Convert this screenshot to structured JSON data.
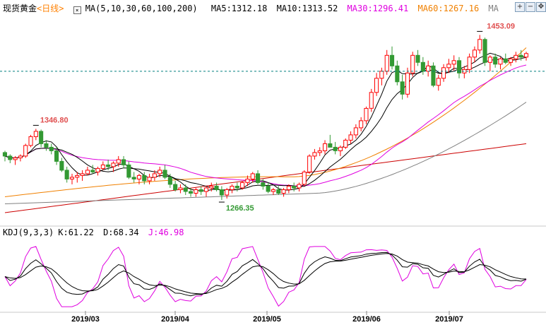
{
  "header": {
    "instrument": "现货黄金",
    "period": "<日线>",
    "ma_config": "MA(5,10,30,60,100,200)",
    "ma5": "MA5:1312.18",
    "ma10": "MA10:1313.52",
    "ma30": "MA30:1296.41",
    "ma60": "MA60:1267.16",
    "ma_more": "MA"
  },
  "controls": {
    "zoom_in": "+",
    "zoom_out": "−",
    "move": "✥"
  },
  "kdj": {
    "config": "KDJ(9,3,3)",
    "k": "K:61.22",
    "d": "D:68.34",
    "j": "J:46.98"
  },
  "colors": {
    "up": "#ff0000",
    "down": "#339933",
    "ma5": "#000000",
    "ma10": "#000000",
    "ma30": "#e000e0",
    "ma60": "#f08000",
    "ma100": "#808080",
    "ma200": "#cc0000",
    "kdj_k": "#000000",
    "kdj_d": "#000000",
    "kdj_j": "#e000e0",
    "price_line": "#008080"
  },
  "chart_data": {
    "type": "candlestick",
    "price_annotations": [
      {
        "label": "1346.80",
        "color": "#e05050"
      },
      {
        "label": "1266.35",
        "color": "#339933"
      },
      {
        "label": "1453.09",
        "color": "#e05050"
      }
    ],
    "x_ticks": [
      "2019/03",
      "2019/04",
      "2019/05",
      "2019/06",
      "2019/07"
    ],
    "last_price": 1412,
    "ylim": [
      1240,
      1475
    ],
    "candles": [
      [
        1320,
        1322,
        1310,
        1316
      ],
      [
        1316,
        1318,
        1308,
        1312
      ],
      [
        1312,
        1316,
        1306,
        1314
      ],
      [
        1314,
        1318,
        1310,
        1316
      ],
      [
        1316,
        1330,
        1314,
        1328
      ],
      [
        1328,
        1340,
        1326,
        1338
      ],
      [
        1338,
        1346.8,
        1334,
        1344
      ],
      [
        1344,
        1346,
        1326,
        1330
      ],
      [
        1330,
        1334,
        1322,
        1326
      ],
      [
        1326,
        1330,
        1318,
        1322
      ],
      [
        1322,
        1326,
        1306,
        1310
      ],
      [
        1310,
        1314,
        1298,
        1300
      ],
      [
        1300,
        1304,
        1286,
        1290
      ],
      [
        1290,
        1296,
        1284,
        1292
      ],
      [
        1292,
        1298,
        1286,
        1294
      ],
      [
        1294,
        1300,
        1288,
        1296
      ],
      [
        1296,
        1304,
        1294,
        1300
      ],
      [
        1300,
        1306,
        1296,
        1298
      ],
      [
        1298,
        1304,
        1294,
        1302
      ],
      [
        1302,
        1310,
        1300,
        1306
      ],
      [
        1306,
        1312,
        1300,
        1304
      ],
      [
        1304,
        1310,
        1298,
        1308
      ],
      [
        1308,
        1316,
        1304,
        1312
      ],
      [
        1312,
        1316,
        1302,
        1306
      ],
      [
        1306,
        1310,
        1290,
        1292
      ],
      [
        1292,
        1298,
        1286,
        1290
      ],
      [
        1290,
        1296,
        1284,
        1294
      ],
      [
        1294,
        1298,
        1284,
        1288
      ],
      [
        1288,
        1296,
        1284,
        1292
      ],
      [
        1292,
        1300,
        1288,
        1296
      ],
      [
        1296,
        1304,
        1292,
        1300
      ],
      [
        1300,
        1306,
        1290,
        1292
      ],
      [
        1292,
        1296,
        1280,
        1284
      ],
      [
        1284,
        1288,
        1276,
        1278
      ],
      [
        1278,
        1284,
        1274,
        1280
      ],
      [
        1280,
        1284,
        1272,
        1276
      ],
      [
        1276,
        1280,
        1270,
        1274
      ],
      [
        1274,
        1280,
        1270,
        1278
      ],
      [
        1278,
        1282,
        1272,
        1276
      ],
      [
        1276,
        1282,
        1270,
        1280
      ],
      [
        1280,
        1286,
        1276,
        1282
      ],
      [
        1282,
        1286,
        1276,
        1278
      ],
      [
        1278,
        1282,
        1266.35,
        1272
      ],
      [
        1272,
        1280,
        1268,
        1278
      ],
      [
        1278,
        1284,
        1274,
        1282
      ],
      [
        1282,
        1286,
        1276,
        1280
      ],
      [
        1280,
        1288,
        1278,
        1286
      ],
      [
        1286,
        1294,
        1282,
        1290
      ],
      [
        1290,
        1298,
        1286,
        1296
      ],
      [
        1296,
        1300,
        1284,
        1286
      ],
      [
        1286,
        1290,
        1278,
        1282
      ],
      [
        1282,
        1286,
        1274,
        1276
      ],
      [
        1276,
        1280,
        1272,
        1278
      ],
      [
        1278,
        1282,
        1272,
        1274
      ],
      [
        1274,
        1280,
        1270,
        1278
      ],
      [
        1278,
        1284,
        1274,
        1282
      ],
      [
        1282,
        1286,
        1276,
        1280
      ],
      [
        1280,
        1286,
        1276,
        1284
      ],
      [
        1284,
        1300,
        1282,
        1298
      ],
      [
        1298,
        1318,
        1296,
        1316
      ],
      [
        1316,
        1324,
        1312,
        1320
      ],
      [
        1320,
        1326,
        1316,
        1322
      ],
      [
        1322,
        1334,
        1318,
        1330
      ],
      [
        1330,
        1340,
        1326,
        1326
      ],
      [
        1326,
        1332,
        1318,
        1322
      ],
      [
        1322,
        1328,
        1316,
        1326
      ],
      [
        1326,
        1336,
        1324,
        1334
      ],
      [
        1334,
        1344,
        1330,
        1340
      ],
      [
        1340,
        1352,
        1336,
        1348
      ],
      [
        1348,
        1360,
        1344,
        1356
      ],
      [
        1356,
        1372,
        1352,
        1370
      ],
      [
        1370,
        1392,
        1366,
        1388
      ],
      [
        1388,
        1410,
        1384,
        1404
      ],
      [
        1404,
        1416,
        1396,
        1412
      ],
      [
        1412,
        1436,
        1408,
        1430
      ],
      [
        1430,
        1440,
        1414,
        1418
      ],
      [
        1418,
        1424,
        1396,
        1400
      ],
      [
        1400,
        1408,
        1380,
        1386
      ],
      [
        1386,
        1416,
        1382,
        1410
      ],
      [
        1410,
        1434,
        1406,
        1430
      ],
      [
        1430,
        1436,
        1418,
        1422
      ],
      [
        1422,
        1428,
        1408,
        1412
      ],
      [
        1412,
        1424,
        1406,
        1418
      ],
      [
        1418,
        1422,
        1394,
        1396
      ],
      [
        1396,
        1408,
        1390,
        1404
      ],
      [
        1404,
        1420,
        1400,
        1416
      ],
      [
        1416,
        1426,
        1410,
        1420
      ],
      [
        1420,
        1430,
        1412,
        1424
      ],
      [
        1424,
        1428,
        1404,
        1410
      ],
      [
        1410,
        1418,
        1404,
        1414
      ],
      [
        1414,
        1432,
        1410,
        1428
      ],
      [
        1428,
        1440,
        1422,
        1436
      ],
      [
        1436,
        1453.09,
        1432,
        1448
      ],
      [
        1448,
        1450,
        1418,
        1422
      ],
      [
        1422,
        1430,
        1412,
        1428
      ],
      [
        1428,
        1432,
        1416,
        1420
      ],
      [
        1420,
        1428,
        1414,
        1426
      ],
      [
        1426,
        1432,
        1420,
        1422
      ],
      [
        1422,
        1428,
        1418,
        1426
      ],
      [
        1426,
        1434,
        1422,
        1430
      ],
      [
        1430,
        1436,
        1424,
        1428
      ],
      [
        1428,
        1434,
        1424,
        1432
      ]
    ]
  }
}
